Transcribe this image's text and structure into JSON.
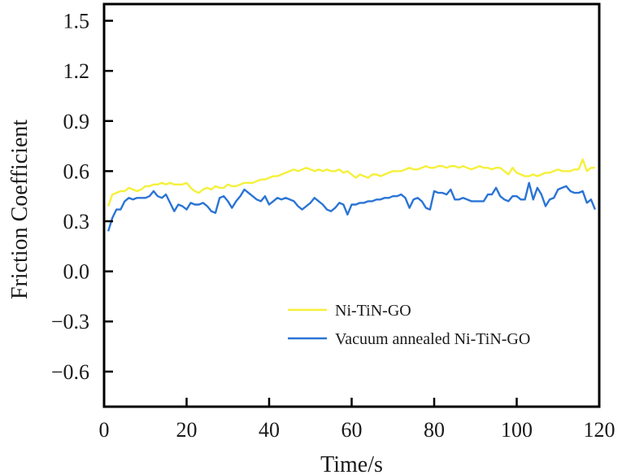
{
  "chart_data": {
    "type": "line",
    "title": "",
    "xlabel": "Time/s",
    "ylabel": "Friction Coefficient",
    "xlim": [
      0,
      120
    ],
    "ylim": [
      -0.81,
      1.6
    ],
    "xticks": [
      0,
      20,
      40,
      60,
      80,
      100,
      120
    ],
    "xtick_labels": [
      "0",
      "20",
      "40",
      "60",
      "80",
      "100",
      "120"
    ],
    "yticks": [
      1.5,
      1.2,
      0.9,
      0.6,
      0.3,
      0.0,
      -0.3,
      -0.6
    ],
    "ytick_labels": [
      "1.5",
      "1.2",
      "0.9",
      "0.6",
      "0.3",
      "0.0",
      "−0.3",
      "−0.6"
    ],
    "grid": false,
    "legend_position": "lower-center",
    "series": [
      {
        "name": "Ni-TiN-GO",
        "color": "#f5f03a",
        "x": [
          1,
          2,
          3,
          4,
          5,
          6,
          7,
          8,
          9,
          10,
          11,
          12,
          13,
          14,
          15,
          16,
          17,
          18,
          19,
          20,
          21,
          22,
          23,
          24,
          25,
          26,
          27,
          28,
          29,
          30,
          31,
          32,
          33,
          34,
          35,
          36,
          37,
          38,
          39,
          40,
          41,
          42,
          43,
          44,
          45,
          46,
          47,
          48,
          49,
          50,
          51,
          52,
          53,
          54,
          55,
          56,
          57,
          58,
          59,
          60,
          61,
          62,
          63,
          64,
          65,
          66,
          67,
          68,
          69,
          70,
          71,
          72,
          73,
          74,
          75,
          76,
          77,
          78,
          79,
          80,
          81,
          82,
          83,
          84,
          85,
          86,
          87,
          88,
          89,
          90,
          91,
          92,
          93,
          94,
          95,
          96,
          97,
          98,
          99,
          100,
          101,
          102,
          103,
          104,
          105,
          106,
          107,
          108,
          109,
          110,
          111,
          112,
          113,
          114,
          115,
          116,
          117,
          118,
          119
        ],
        "values": [
          0.39,
          0.46,
          0.47,
          0.48,
          0.48,
          0.5,
          0.49,
          0.48,
          0.49,
          0.51,
          0.51,
          0.52,
          0.52,
          0.53,
          0.52,
          0.53,
          0.52,
          0.52,
          0.52,
          0.53,
          0.5,
          0.48,
          0.47,
          0.49,
          0.5,
          0.49,
          0.51,
          0.5,
          0.5,
          0.52,
          0.51,
          0.51,
          0.52,
          0.53,
          0.53,
          0.53,
          0.54,
          0.55,
          0.55,
          0.56,
          0.57,
          0.57,
          0.58,
          0.59,
          0.6,
          0.61,
          0.6,
          0.61,
          0.62,
          0.61,
          0.6,
          0.61,
          0.6,
          0.61,
          0.6,
          0.6,
          0.61,
          0.59,
          0.6,
          0.58,
          0.56,
          0.58,
          0.57,
          0.56,
          0.58,
          0.58,
          0.57,
          0.58,
          0.59,
          0.6,
          0.6,
          0.6,
          0.61,
          0.62,
          0.61,
          0.61,
          0.62,
          0.63,
          0.62,
          0.62,
          0.63,
          0.63,
          0.62,
          0.63,
          0.63,
          0.62,
          0.63,
          0.62,
          0.61,
          0.62,
          0.63,
          0.62,
          0.62,
          0.61,
          0.62,
          0.62,
          0.6,
          0.58,
          0.62,
          0.59,
          0.58,
          0.57,
          0.57,
          0.58,
          0.57,
          0.58,
          0.59,
          0.59,
          0.6,
          0.61,
          0.6,
          0.6,
          0.6,
          0.61,
          0.61,
          0.67,
          0.6,
          0.62,
          0.62
        ]
      },
      {
        "name": "Vacuum annealed Ni-TiN-GO",
        "color": "#2a74d6",
        "x": [
          1,
          2,
          3,
          4,
          5,
          6,
          7,
          8,
          9,
          10,
          11,
          12,
          13,
          14,
          15,
          16,
          17,
          18,
          19,
          20,
          21,
          22,
          23,
          24,
          25,
          26,
          27,
          28,
          29,
          30,
          31,
          32,
          33,
          34,
          35,
          36,
          37,
          38,
          39,
          40,
          41,
          42,
          43,
          44,
          45,
          46,
          47,
          48,
          49,
          50,
          51,
          52,
          53,
          54,
          55,
          56,
          57,
          58,
          59,
          60,
          61,
          62,
          63,
          64,
          65,
          66,
          67,
          68,
          69,
          70,
          71,
          72,
          73,
          74,
          75,
          76,
          77,
          78,
          79,
          80,
          81,
          82,
          83,
          84,
          85,
          86,
          87,
          88,
          89,
          90,
          91,
          92,
          93,
          94,
          95,
          96,
          97,
          98,
          99,
          100,
          101,
          102,
          103,
          104,
          105,
          106,
          107,
          108,
          109,
          110,
          111,
          112,
          113,
          114,
          115,
          116,
          117,
          118,
          119
        ],
        "values": [
          0.24,
          0.32,
          0.37,
          0.37,
          0.42,
          0.44,
          0.43,
          0.44,
          0.44,
          0.44,
          0.45,
          0.48,
          0.45,
          0.44,
          0.46,
          0.41,
          0.36,
          0.4,
          0.39,
          0.37,
          0.41,
          0.4,
          0.4,
          0.41,
          0.39,
          0.36,
          0.35,
          0.44,
          0.45,
          0.42,
          0.38,
          0.42,
          0.45,
          0.49,
          0.47,
          0.45,
          0.43,
          0.42,
          0.45,
          0.4,
          0.42,
          0.44,
          0.43,
          0.44,
          0.43,
          0.42,
          0.39,
          0.37,
          0.39,
          0.41,
          0.44,
          0.42,
          0.4,
          0.37,
          0.36,
          0.38,
          0.41,
          0.4,
          0.34,
          0.4,
          0.4,
          0.41,
          0.41,
          0.42,
          0.42,
          0.43,
          0.43,
          0.44,
          0.44,
          0.45,
          0.45,
          0.46,
          0.44,
          0.38,
          0.43,
          0.44,
          0.42,
          0.38,
          0.37,
          0.48,
          0.47,
          0.47,
          0.46,
          0.49,
          0.43,
          0.43,
          0.44,
          0.43,
          0.42,
          0.42,
          0.42,
          0.42,
          0.46,
          0.46,
          0.5,
          0.45,
          0.43,
          0.42,
          0.45,
          0.45,
          0.43,
          0.43,
          0.53,
          0.43,
          0.5,
          0.46,
          0.39,
          0.43,
          0.44,
          0.49,
          0.5,
          0.51,
          0.48,
          0.47,
          0.47,
          0.48,
          0.41,
          0.43,
          0.37
        ]
      }
    ]
  }
}
